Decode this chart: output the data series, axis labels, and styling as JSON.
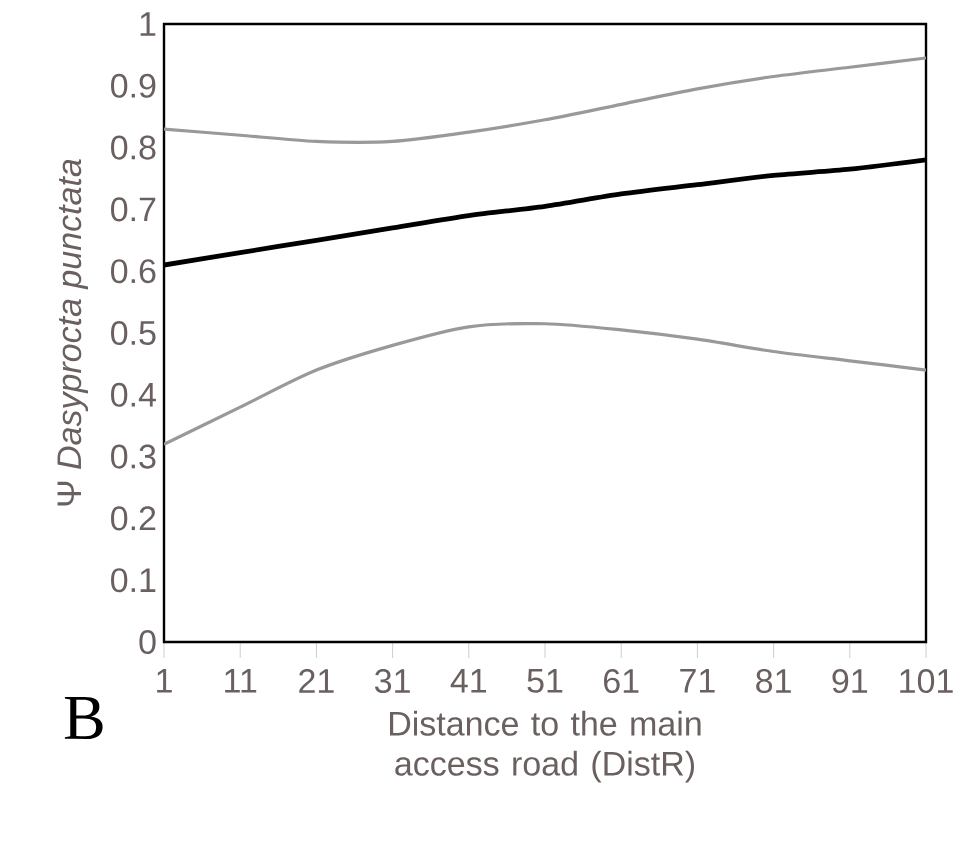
{
  "chart_data": {
    "type": "line",
    "xlabel": "Distance to the main access road (DistR)",
    "ylabel": "Ψ *Dasyprocta punctata*",
    "x": [
      1,
      11,
      21,
      31,
      41,
      51,
      61,
      71,
      81,
      91,
      101
    ],
    "series": [
      {
        "color": "#999999",
        "values": [
          0.83,
          0.82,
          0.81,
          0.81,
          0.825,
          0.845,
          0.87,
          0.895,
          0.915,
          0.93,
          0.945
        ]
      },
      {
        "color": "#000000",
        "values": [
          0.61,
          0.63,
          0.65,
          0.67,
          0.69,
          0.705,
          0.725,
          0.74,
          0.755,
          0.765,
          0.78
        ]
      },
      {
        "color": "#999999",
        "values": [
          0.32,
          0.38,
          0.44,
          0.48,
          0.51,
          0.515,
          0.505,
          0.49,
          0.47,
          0.455,
          0.44
        ]
      }
    ],
    "xlim": [
      1,
      101
    ],
    "xticks": [
      1,
      11,
      21,
      31,
      41,
      51,
      61,
      71,
      81,
      91,
      101
    ],
    "ylim": [
      0,
      1
    ],
    "yticks": [
      0,
      0.1,
      0.2,
      0.3,
      0.4,
      0.5,
      0.6,
      0.7,
      0.8,
      0.9,
      1
    ],
    "grid": false,
    "annotations": [
      "B"
    ]
  }
}
